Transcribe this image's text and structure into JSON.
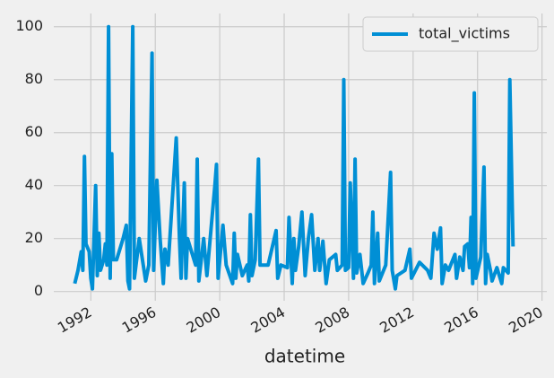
{
  "chart_data": {
    "type": "line",
    "x_label": "datetime",
    "x": [
      1991.0,
      1991.2,
      1991.4,
      1991.5,
      1991.6,
      1991.7,
      1991.9,
      1992.0,
      1992.1,
      1992.3,
      1992.4,
      1992.5,
      1992.6,
      1992.8,
      1992.9,
      1993.0,
      1993.1,
      1993.2,
      1993.3,
      1993.4,
      1993.6,
      1994.0,
      1994.2,
      1994.3,
      1994.4,
      1994.6,
      1994.7,
      1995.0,
      1995.4,
      1995.6,
      1995.8,
      1995.9,
      1996.1,
      1996.3,
      1996.5,
      1996.6,
      1996.8,
      1997.3,
      1997.5,
      1997.6,
      1997.8,
      1997.9,
      1998.0,
      1998.5,
      1998.6,
      1998.7,
      1999.0,
      1999.2,
      1999.7,
      1999.8,
      1999.9,
      2000.2,
      2000.4,
      2000.8,
      2000.9,
      2001.0,
      2001.1,
      2001.4,
      2001.7,
      2001.8,
      2001.9,
      2002.0,
      2002.2,
      2002.4,
      2002.5,
      2003.0,
      2003.5,
      2003.6,
      2003.8,
      2004.2,
      2004.3,
      2004.5,
      2004.6,
      2004.7,
      2004.9,
      2005.1,
      2005.3,
      2005.5,
      2005.7,
      2005.9,
      2006.1,
      2006.2,
      2006.4,
      2006.6,
      2006.8,
      2007.2,
      2007.3,
      2007.6,
      2007.7,
      2007.8,
      2008.0,
      2008.1,
      2008.3,
      2008.4,
      2008.5,
      2008.7,
      2008.9,
      2009.2,
      2009.4,
      2009.5,
      2009.6,
      2009.8,
      2009.9,
      2010.3,
      2010.6,
      2010.7,
      2010.9,
      2011.0,
      2011.5,
      2011.8,
      2011.9,
      2012.4,
      2012.9,
      2013.1,
      2013.3,
      2013.5,
      2013.7,
      2013.8,
      2014.0,
      2014.2,
      2014.6,
      2014.7,
      2014.9,
      2015.1,
      2015.2,
      2015.4,
      2015.5,
      2015.6,
      2015.7,
      2015.8,
      2015.9,
      2016.2,
      2016.4,
      2016.5,
      2016.6,
      2016.8,
      2016.9,
      2017.2,
      2017.5,
      2017.6,
      2017.9,
      2018.0,
      2018.2
    ],
    "series": [
      {
        "name": "total_victims",
        "color": "#008fd5",
        "values": [
          3,
          8,
          15,
          8,
          51,
          18,
          15,
          5,
          1,
          40,
          6,
          22,
          8,
          12,
          18,
          10,
          100,
          5,
          52,
          12,
          12,
          20,
          25,
          4,
          1,
          100,
          5,
          20,
          4,
          10,
          90,
          8,
          42,
          20,
          3,
          16,
          10,
          58,
          20,
          5,
          41,
          5,
          20,
          10,
          50,
          4,
          20,
          6,
          40,
          48,
          5,
          25,
          10,
          3,
          22,
          5,
          14,
          6,
          10,
          4,
          29,
          6,
          12,
          50,
          10,
          10,
          23,
          5,
          10,
          9,
          28,
          3,
          20,
          8,
          17,
          30,
          6,
          20,
          29,
          8,
          20,
          8,
          19,
          3,
          12,
          14,
          8,
          10,
          80,
          8,
          9,
          41,
          5,
          50,
          7,
          14,
          3,
          7,
          10,
          30,
          3,
          22,
          4,
          10,
          45,
          8,
          1,
          6,
          8,
          16,
          5,
          11,
          8,
          5,
          22,
          16,
          24,
          3,
          10,
          8,
          14,
          5,
          13,
          8,
          17,
          18,
          9,
          28,
          3,
          75,
          5,
          13,
          47,
          3,
          14,
          8,
          4,
          9,
          3,
          9,
          7,
          80,
          17
        ]
      }
    ],
    "xlim": [
      1989.7,
      2020.3
    ],
    "xticks": [
      1992,
      1996,
      2000,
      2004,
      2008,
      2012,
      2016,
      2020
    ],
    "ylim": [
      -3.5,
      105
    ],
    "yticks": [
      0,
      20,
      40,
      60,
      80,
      100
    ],
    "grid": true,
    "legend": "upper right"
  }
}
